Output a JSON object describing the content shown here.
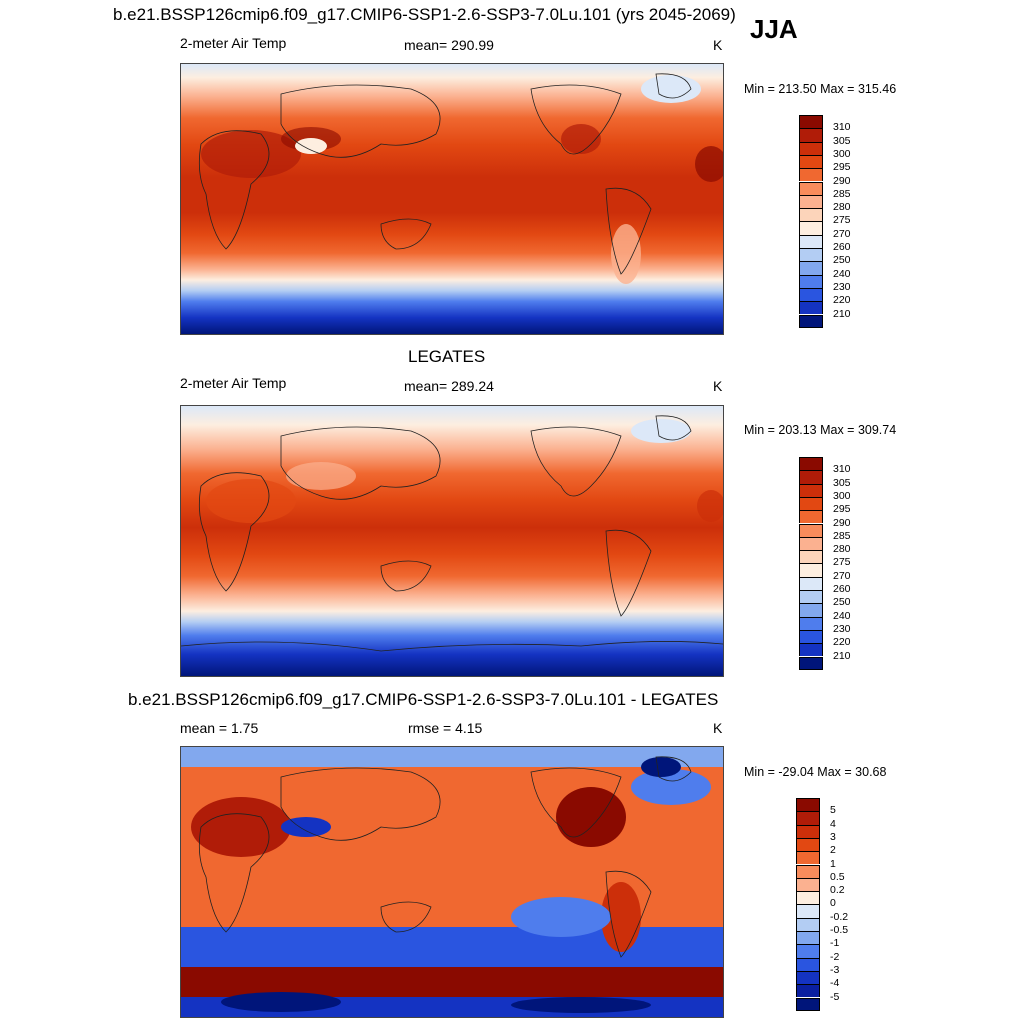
{
  "season": "JJA",
  "panels": [
    {
      "title": "b.e21.BSSP126cmip6.f09_g17.CMIP6-SSP1-2.6-SSP3-7.0Lu.101 (yrs 2045-2069)",
      "left_label": "2-meter Air Temp",
      "center_label": "mean= 290.99",
      "units": "K",
      "minmax": "Min = 213.50 Max = 315.46",
      "colorbar": {
        "labels": [
          "310",
          "305",
          "300",
          "295",
          "290",
          "285",
          "280",
          "275",
          "270",
          "260",
          "250",
          "240",
          "230",
          "220",
          "210"
        ],
        "colors": [
          "#8a0a00",
          "#b01c08",
          "#cc2f0a",
          "#e24812",
          "#f06830",
          "#f88c5c",
          "#fbb190",
          "#fcd4ba",
          "#fdeee0",
          "#dce8f8",
          "#b3cdf3",
          "#82a8ee",
          "#4f7ded",
          "#2a55e0",
          "#1433c2",
          "#00157a"
        ]
      }
    },
    {
      "title": "LEGATES",
      "left_label": "2-meter Air Temp",
      "center_label": "mean= 289.24",
      "units": "K",
      "minmax": "Min = 203.13 Max = 309.74",
      "colorbar": {
        "labels": [
          "310",
          "305",
          "300",
          "295",
          "290",
          "285",
          "280",
          "275",
          "270",
          "260",
          "250",
          "240",
          "230",
          "220",
          "210"
        ],
        "colors": [
          "#8a0a00",
          "#b01c08",
          "#cc2f0a",
          "#e24812",
          "#f06830",
          "#f88c5c",
          "#fbb190",
          "#fcd4ba",
          "#fdeee0",
          "#dce8f8",
          "#b3cdf3",
          "#82a8ee",
          "#4f7ded",
          "#2a55e0",
          "#1433c2",
          "#00157a"
        ]
      }
    },
    {
      "title": "b.e21.BSSP126cmip6.f09_g17.CMIP6-SSP1-2.6-SSP3-7.0Lu.101 - LEGATES",
      "left_label": "mean =   1.75",
      "center_label": "rmse =   4.15",
      "units": "K",
      "minmax": "Min = -29.04 Max =  30.68",
      "colorbar": {
        "labels": [
          "5",
          "4",
          "3",
          "2",
          "1",
          "0.5",
          "0.2",
          "0",
          "-0.2",
          "-0.5",
          "-1",
          "-2",
          "-3",
          "-4",
          "-5"
        ],
        "colors": [
          "#8a0a00",
          "#b01c08",
          "#cc2f0a",
          "#e24812",
          "#f06830",
          "#f88c5c",
          "#fbb190",
          "#fdeee0",
          "#dce8f8",
          "#b3cdf3",
          "#82a8ee",
          "#4f7ded",
          "#2a55e0",
          "#1433c2",
          "#0a1fa0",
          "#00157a"
        ]
      }
    }
  ]
}
